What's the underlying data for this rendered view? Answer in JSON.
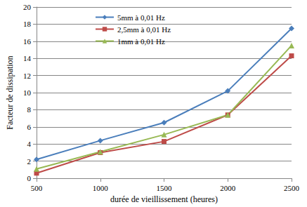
{
  "chart_data": {
    "type": "line",
    "x_label": "durée de vieillissement (heures)",
    "y_label": "Facteur de dissipation",
    "x": [
      500,
      1000,
      1500,
      2000,
      2500
    ],
    "xlim": [
      500,
      2500
    ],
    "xticks": [
      500,
      1000,
      1500,
      2000,
      2500
    ],
    "ylim": [
      0,
      20
    ],
    "yticks": [
      0,
      2,
      4,
      6,
      8,
      10,
      12,
      14,
      16,
      18,
      20
    ],
    "grid": true,
    "legend": "upper left",
    "series": [
      {
        "name": "5mm à 0,01 Hz",
        "color": "#4a7ebb",
        "marker": "diamond",
        "values": [
          2.2,
          4.4,
          6.5,
          10.2,
          17.5
        ]
      },
      {
        "name": "2,5mm à 0,01 Hz",
        "color": "#be4b48",
        "marker": "square",
        "values": [
          0.6,
          3.0,
          4.3,
          7.4,
          14.3
        ]
      },
      {
        "name": "1mm à 0,01 Hz",
        "color": "#98b954",
        "marker": "triangle",
        "values": [
          1.1,
          3.1,
          5.1,
          7.4,
          15.5
        ]
      }
    ]
  }
}
